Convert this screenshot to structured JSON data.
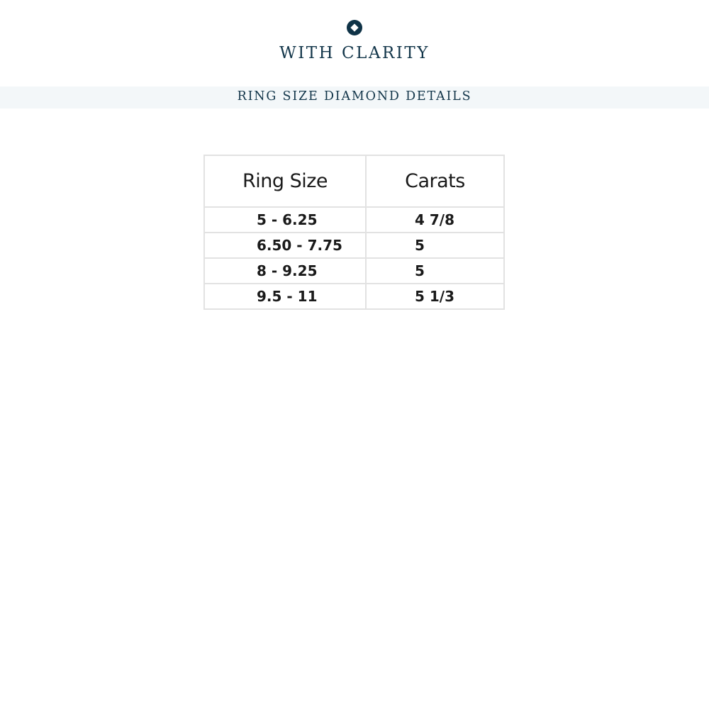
{
  "brand": {
    "name": "WITH CLARITY",
    "logo_icon": "diamond-in-circle-icon",
    "color": "#13364a"
  },
  "banner": {
    "title": "RING SIZE DIAMOND DETAILS",
    "background": "#f3f7f9"
  },
  "table": {
    "headers": [
      "Ring Size",
      "Carats"
    ],
    "rows": [
      {
        "ring_size": "5 - 6.25",
        "carats": "4 7/8"
      },
      {
        "ring_size": "6.50 - 7.75",
        "carats": "5"
      },
      {
        "ring_size": "8 - 9.25",
        "carats": "5"
      },
      {
        "ring_size": "9.5 - 11",
        "carats": "5 1/3"
      }
    ]
  }
}
